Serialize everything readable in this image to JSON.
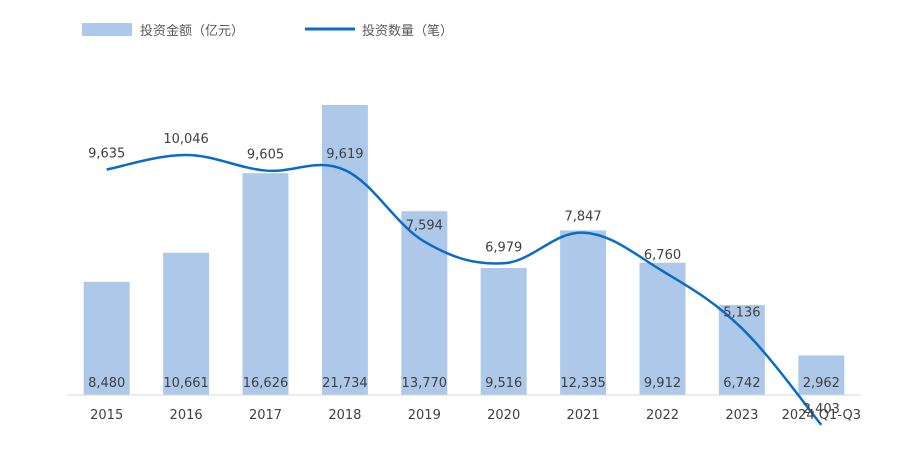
{
  "chart_data": {
    "type": "bar",
    "categories": [
      "2015",
      "2016",
      "2017",
      "2018",
      "2019",
      "2020",
      "2021",
      "2022",
      "2023",
      "2024 Q1-Q3"
    ],
    "series": [
      {
        "name": "投资金额（亿元）",
        "type": "bar",
        "values": [
          8480,
          10661,
          16626,
          21734,
          13770,
          9516,
          12335,
          9912,
          6742,
          2962
        ],
        "labels": [
          "8,480",
          "10,661",
          "16,626",
          "21,734",
          "13,770",
          "9,516",
          "12,335",
          "9,912",
          "6,742",
          "2,962"
        ],
        "color": "#aec8e9"
      },
      {
        "name": "投资数量（笔）",
        "type": "line",
        "values": [
          9635,
          10046,
          9605,
          9619,
          7594,
          6979,
          7847,
          6760,
          5136,
          2403
        ],
        "labels": [
          "9,635",
          "10,046",
          "9,605",
          "9,619",
          "7,594",
          "6,979",
          "7,847",
          "6,760",
          "5,136",
          "2,403"
        ],
        "color": "#0a6cc6"
      }
    ],
    "title": "",
    "xlabel": "",
    "ylabel": "",
    "grid": false,
    "legend_position": "top-left"
  }
}
